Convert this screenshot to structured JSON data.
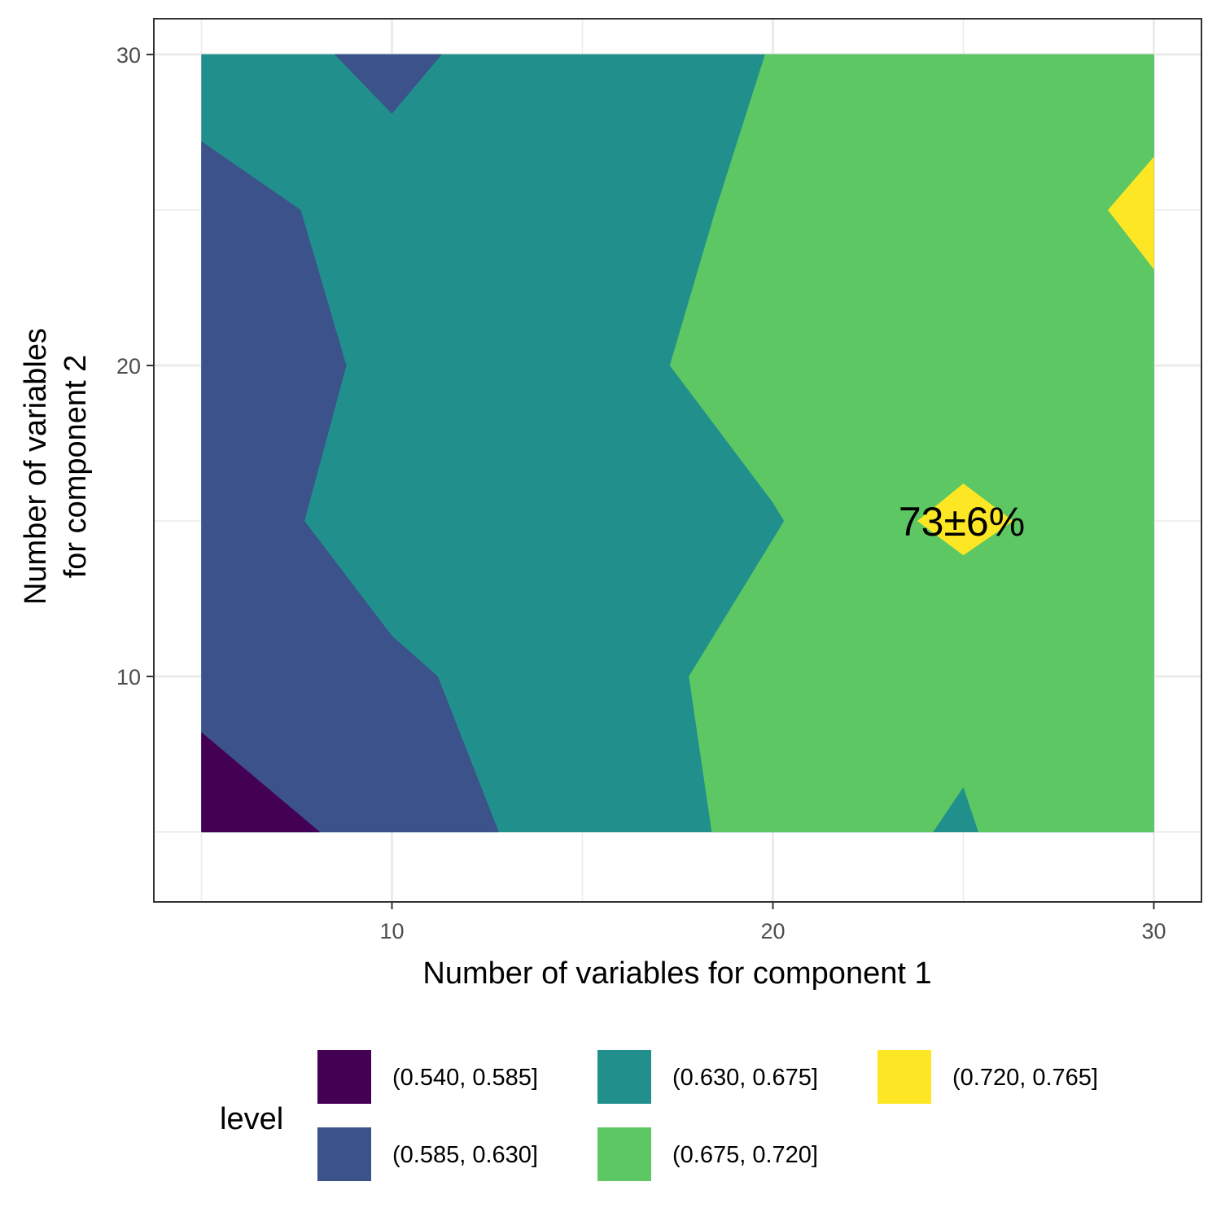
{
  "chart_data": {
    "type": "heatmap",
    "subtype": "filled-contour",
    "xlabel": "Number of variables for component 1",
    "ylabel_lines": [
      "Number of variables",
      "for component 2"
    ],
    "xlim": [
      3.75,
      31.25
    ],
    "ylim": [
      2.75,
      31.15
    ],
    "x_ticks": [
      10,
      20,
      30
    ],
    "y_ticks": [
      10,
      20,
      30
    ],
    "grid": true,
    "legend": {
      "title": "level",
      "placement": "bottom",
      "entries": [
        {
          "label": "(0.540, 0.585]",
          "color": "#440154"
        },
        {
          "label": "(0.585, 0.630]",
          "color": "#3B528B"
        },
        {
          "label": "(0.630, 0.675]",
          "color": "#21908C"
        },
        {
          "label": "(0.675, 0.720]",
          "color": "#5DC863"
        },
        {
          "label": "(0.720, 0.765]",
          "color": "#FDE725"
        }
      ]
    },
    "regions": [
      {
        "level": "(0.630, 0.675]",
        "color": "#21908C",
        "points": [
          [
            5,
            5
          ],
          [
            30,
            5
          ],
          [
            30,
            30
          ],
          [
            5,
            30
          ]
        ]
      },
      {
        "level": "(0.585, 0.630]",
        "color": "#3B528B",
        "points": [
          [
            5,
            27.2
          ],
          [
            7.6,
            25
          ],
          [
            8.8,
            20
          ],
          [
            7.7,
            15
          ],
          [
            10,
            11.3
          ],
          [
            11.2,
            10
          ],
          [
            12.8,
            5
          ],
          [
            5,
            5
          ]
        ]
      },
      {
        "level": "(0.585, 0.630]",
        "color": "#3B528B",
        "points": [
          [
            8.5,
            30
          ],
          [
            10,
            28.1
          ],
          [
            11.3,
            30
          ]
        ]
      },
      {
        "level": "(0.540, 0.585]",
        "color": "#440154",
        "points": [
          [
            5,
            8.2
          ],
          [
            8.1,
            5
          ],
          [
            5,
            5
          ]
        ]
      },
      {
        "level": "(0.675, 0.720]",
        "color": "#5DC863",
        "points": [
          [
            19.8,
            30
          ],
          [
            30,
            30
          ],
          [
            30,
            5
          ],
          [
            25.4,
            5
          ],
          [
            25,
            6.45
          ],
          [
            24.2,
            5
          ],
          [
            18.4,
            5
          ],
          [
            17.8,
            10
          ],
          [
            20.3,
            15
          ],
          [
            20,
            15.6
          ],
          [
            17.3,
            20
          ],
          [
            18.5,
            25
          ]
        ]
      },
      {
        "level": "(0.720, 0.765]",
        "color": "#FDE725",
        "points": [
          [
            25,
            16.2
          ],
          [
            26.3,
            15
          ],
          [
            25,
            13.9
          ],
          [
            23.8,
            15
          ]
        ]
      },
      {
        "level": "(0.720, 0.765]",
        "color": "#FDE725",
        "points": [
          [
            30,
            26.7
          ],
          [
            28.8,
            25
          ],
          [
            30,
            23.1
          ]
        ]
      }
    ],
    "annotations": [
      {
        "text": "73±6%",
        "x": 25,
        "y": 15
      }
    ]
  }
}
